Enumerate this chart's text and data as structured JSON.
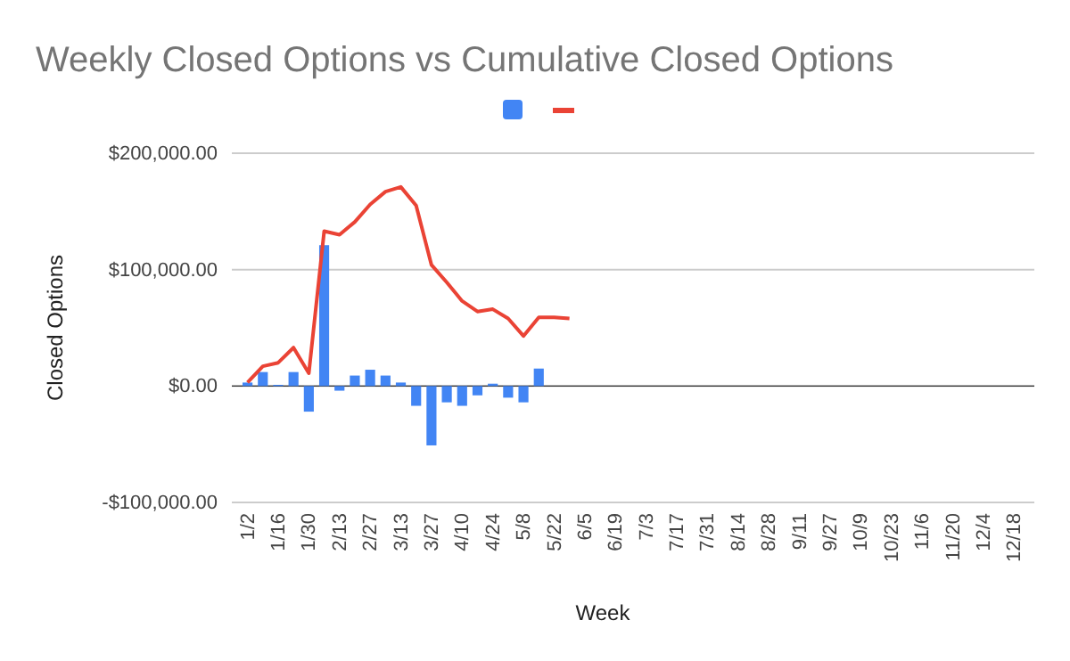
{
  "chart_data": {
    "type": "bar",
    "title": "Weekly Closed Options vs Cumulative Closed Options",
    "xlabel": "Week",
    "ylabel": "Closed Options",
    "categories": [
      "1/2",
      null,
      "1/16",
      null,
      "1/30",
      null,
      "2/13",
      null,
      "2/27",
      null,
      "3/13",
      null,
      "3/27",
      null,
      "4/10",
      null,
      "4/24",
      null,
      "5/8",
      null,
      "5/22",
      null,
      "6/5",
      null,
      "6/19",
      null,
      "7/3",
      null,
      "7/17",
      null,
      "7/31",
      null,
      "8/14",
      null,
      "8/28",
      null,
      "9/11",
      null,
      "9/27",
      null,
      "10/9",
      null,
      "10/23",
      null,
      "11/6",
      null,
      "11/20",
      null,
      "12/4",
      null,
      "12/18",
      null
    ],
    "series": [
      {
        "color": "#4285f4",
        "values": [
          3000,
          12000,
          1000,
          12000,
          -22000,
          121000,
          -4000,
          9000,
          14000,
          9000,
          3000,
          -17000,
          -51000,
          -14000,
          -17000,
          -8000,
          2000,
          -10000,
          -14000,
          15000,
          null,
          null,
          null,
          null,
          null,
          null,
          null,
          null,
          null,
          null,
          null,
          null,
          null,
          null,
          null,
          null,
          null,
          null,
          null,
          null,
          null,
          null,
          null,
          null,
          null,
          null,
          null,
          null,
          null,
          null,
          null,
          null
        ]
      },
      {
        "type": "line",
        "color": "#ea4335",
        "values": [
          3000,
          17000,
          20000,
          33000,
          11000,
          133000,
          130000,
          141000,
          156000,
          167000,
          171000,
          155000,
          104000,
          89000,
          73000,
          64000,
          66000,
          58000,
          43000,
          59000,
          59000,
          58000,
          null,
          null,
          null,
          null,
          null,
          null,
          null,
          null,
          null,
          null,
          null,
          null,
          null,
          null,
          null,
          null,
          null,
          null,
          null,
          null,
          null,
          null,
          null,
          null,
          null,
          null,
          null,
          null,
          null,
          null
        ]
      }
    ],
    "ylim": [
      -100000,
      200000
    ],
    "yticks": [
      {
        "value": -100000,
        "label": "-$100,000.00"
      },
      {
        "value": 0,
        "label": "$0.00"
      },
      {
        "value": 100000,
        "label": "$100,000.00"
      },
      {
        "value": 200000,
        "label": "$200,000.00"
      }
    ],
    "grid": "y"
  }
}
